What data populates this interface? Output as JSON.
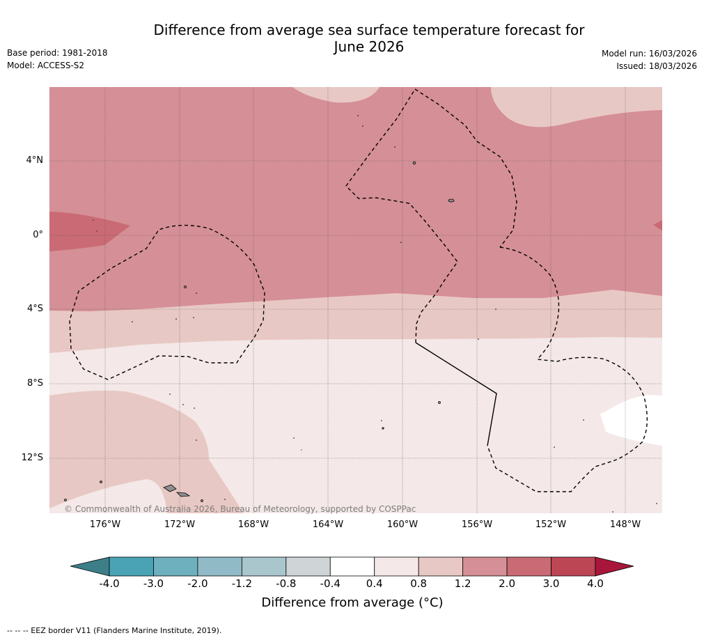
{
  "title_line1": "Difference from average sea surface temperature forecast for",
  "title_line2": "June 2026",
  "base_period": "Base period: 1981-2018",
  "model": "Model: ACCESS-S2",
  "model_run": "Model run: 16/03/2026",
  "issued": "Issued: 18/03/2026",
  "lat_labels": [
    "4°N",
    "0°",
    "4°S",
    "8°S",
    "12°S"
  ],
  "lon_labels": [
    "176°W",
    "172°W",
    "168°W",
    "164°W",
    "160°W",
    "156°W",
    "152°W",
    "148°W"
  ],
  "copyright": "© Commonwealth of Australia 2026, Bureau of Meteorology, supported by COSPPac",
  "colorbar": {
    "ticks": [
      "-4.0",
      "-3.0",
      "-2.0",
      "-1.2",
      "-0.8",
      "-0.4",
      "0.4",
      "0.8",
      "1.2",
      "2.0",
      "3.0",
      "4.0"
    ],
    "colors": [
      "#4aa3b4",
      "#6fb0bf",
      "#90bac6",
      "#a9c6cd",
      "#cfd5d6",
      "#ffffff",
      "#f4e8e8",
      "#e8c8c4",
      "#d58f96",
      "#c96a74",
      "#bd4655"
    ],
    "low_extend_color": "#3d7f89",
    "high_extend_color": "#a8173b",
    "title": "Difference from average (°C)"
  },
  "legend_note": "-- -- -- EEZ border V11 (Flanders Marine Institute, 2019).",
  "colors": {
    "anom_0_8_1_2": "#e8c8c4",
    "anom_1_2_2_0": "#d58f96",
    "anom_2_0_3_0": "#c96a74",
    "anom_0_4_0_8": "#f4e8e8",
    "anom_neutral": "#ffffff"
  }
}
